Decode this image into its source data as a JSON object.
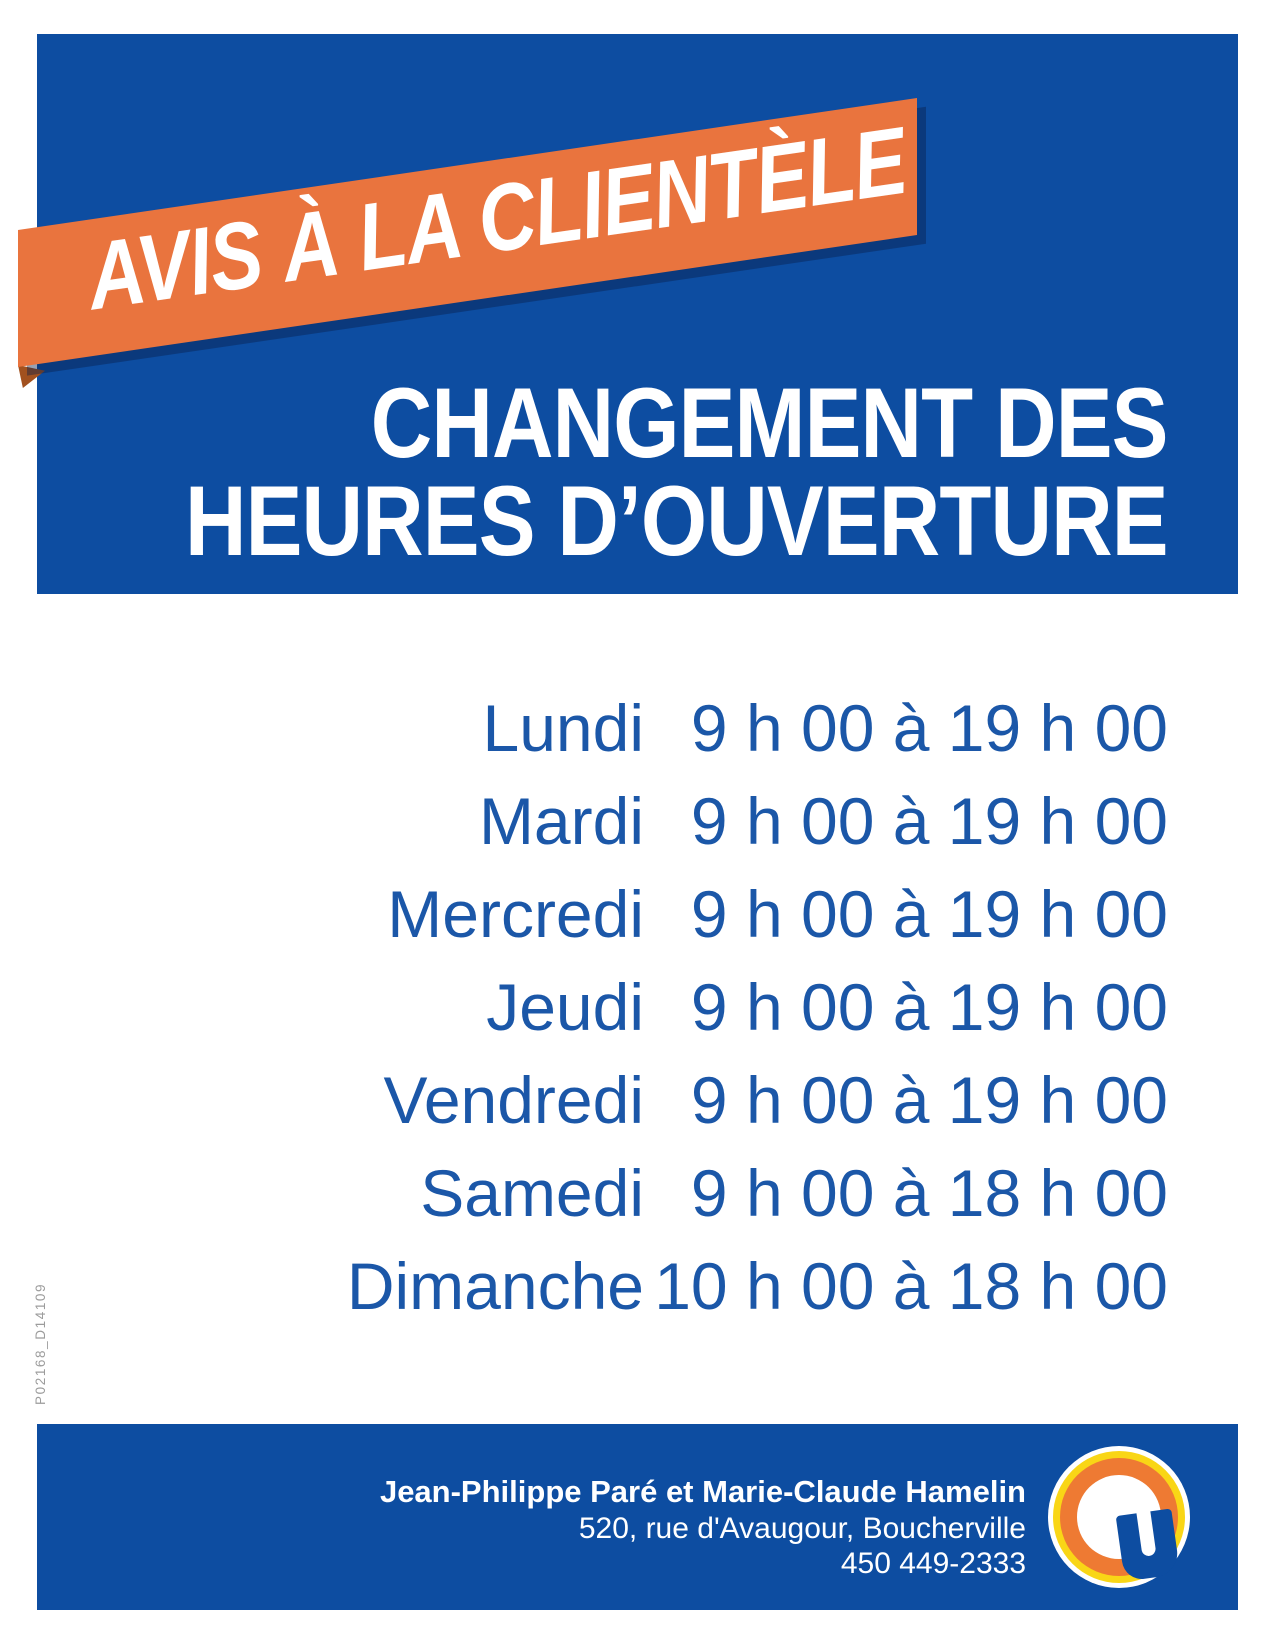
{
  "banner": {
    "label": "AVIS À LA CLIENTÈLE"
  },
  "title": {
    "line1": "CHANGEMENT DES",
    "line2": "HEURES D’OUVERTURE"
  },
  "schedule": [
    {
      "day": "Lundi",
      "hours": "9 h 00 à 19 h 00"
    },
    {
      "day": "Mardi",
      "hours": "9 h 00 à 19 h 00"
    },
    {
      "day": "Mercredi",
      "hours": "9 h 00 à 19 h 00"
    },
    {
      "day": "Jeudi",
      "hours": "9 h 00 à 19 h 00"
    },
    {
      "day": "Vendredi",
      "hours": "9 h 00 à 19 h 00"
    },
    {
      "day": "Samedi",
      "hours": "9 h 00 à 18 h 00"
    },
    {
      "day": "Dimanche",
      "hours": "10 h 00 à 18 h 00"
    }
  ],
  "footer": {
    "owners": "Jean-Philippe Paré et Marie-Claude Hamelin",
    "address": "520, rue d'Avaugour, Boucherville",
    "phone": "450 449-2333",
    "logo_letter": "U"
  },
  "meta": {
    "code": "P02168_D14109"
  },
  "colors": {
    "box_blue": "#0d4da1",
    "banner_orange": "#e9743e",
    "fold_orange": "#a2511f",
    "schedule_blue": "#1b57a8",
    "logo_yellow": "#f9d616",
    "logo_orange": "#ee7a33",
    "code_gray": "#9c9c9c"
  }
}
